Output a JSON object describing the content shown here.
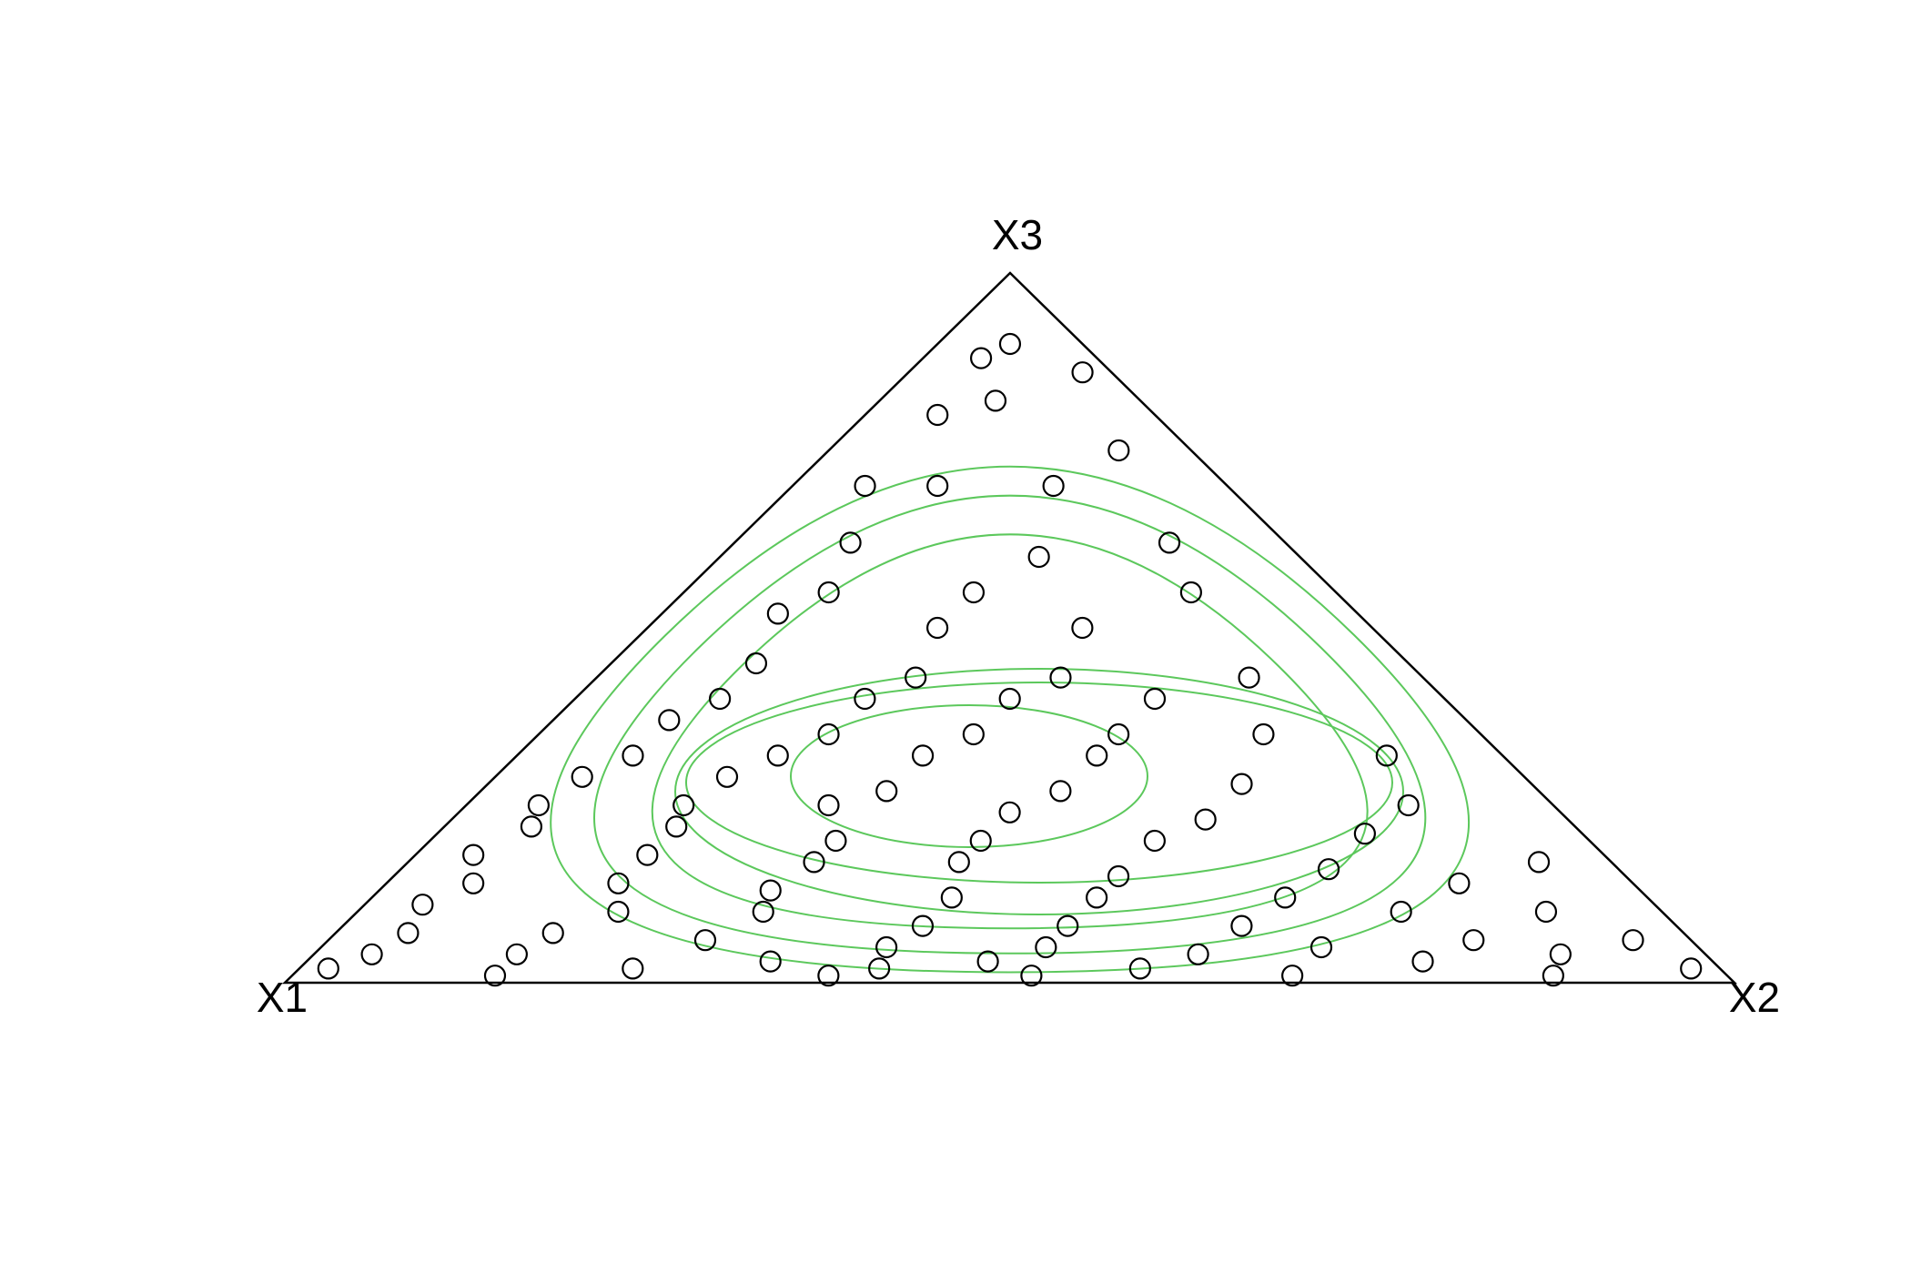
{
  "chart_data": {
    "type": "ternary",
    "series": [
      {
        "name": "X1",
        "values": [
          0.05,
          0.08,
          0.02,
          0.1,
          0.15,
          0.05,
          0.2,
          0.12,
          0.25,
          0.3,
          0.08,
          0.18,
          0.35,
          0.1,
          0.25,
          0.4,
          0.2,
          0.3,
          0.45,
          0.12,
          0.35,
          0.25,
          0.5,
          0.4,
          0.2,
          0.3,
          0.55,
          0.15,
          0.45,
          0.35,
          0.25,
          0.6,
          0.08,
          0.5,
          0.4,
          0.28,
          0.65,
          0.55,
          0.2,
          0.45,
          0.33,
          0.7,
          0.6,
          0.1,
          0.5,
          0.38,
          0.25,
          0.72,
          0.62,
          0.15,
          0.52,
          0.42,
          0.3,
          0.78,
          0.66,
          0.05,
          0.55,
          0.45,
          0.2,
          0.35,
          0.8,
          0.7,
          0.12,
          0.6,
          0.48,
          0.25,
          0.38,
          0.85,
          0.72,
          0.08,
          0.62,
          0.18,
          0.52,
          0.3,
          0.42,
          0.88,
          0.78,
          0.04,
          0.68,
          0.15,
          0.56,
          0.26,
          0.45,
          0.92,
          0.82,
          0.1,
          0.35,
          0.65,
          0.5,
          0.2,
          0.75,
          0.4,
          0.58,
          0.96,
          0.02,
          0.3,
          0.85,
          0.62,
          0.12,
          0.48
        ]
      },
      {
        "name": "X2",
        "values": [
          0.05,
          0.04,
          0.12,
          0.08,
          0.05,
          0.2,
          0.1,
          0.18,
          0.05,
          0.08,
          0.3,
          0.22,
          0.1,
          0.35,
          0.2,
          0.08,
          0.3,
          0.2,
          0.1,
          0.45,
          0.22,
          0.32,
          0.1,
          0.2,
          0.4,
          0.3,
          0.08,
          0.5,
          0.2,
          0.3,
          0.4,
          0.08,
          0.6,
          0.18,
          0.28,
          0.4,
          0.06,
          0.16,
          0.52,
          0.28,
          0.4,
          0.05,
          0.15,
          0.65,
          0.25,
          0.38,
          0.52,
          0.06,
          0.16,
          0.64,
          0.28,
          0.38,
          0.5,
          0.04,
          0.16,
          0.78,
          0.28,
          0.38,
          0.64,
          0.5,
          0.06,
          0.16,
          0.74,
          0.27,
          0.4,
          0.63,
          0.5,
          0.04,
          0.18,
          0.82,
          0.28,
          0.72,
          0.4,
          0.62,
          0.5,
          0.05,
          0.15,
          0.9,
          0.26,
          0.79,
          0.39,
          0.69,
          0.5,
          0.04,
          0.14,
          0.86,
          0.61,
          0.32,
          0.47,
          0.77,
          0.23,
          0.58,
          0.4,
          0.02,
          0.96,
          0.69,
          0.14,
          0.37,
          0.87,
          0.51
        ]
      },
      {
        "name": "X3",
        "values": [
          0.9,
          0.88,
          0.86,
          0.82,
          0.8,
          0.75,
          0.7,
          0.7,
          0.7,
          0.62,
          0.62,
          0.6,
          0.55,
          0.55,
          0.55,
          0.52,
          0.5,
          0.5,
          0.45,
          0.43,
          0.43,
          0.43,
          0.4,
          0.4,
          0.4,
          0.4,
          0.37,
          0.35,
          0.35,
          0.35,
          0.35,
          0.32,
          0.32,
          0.32,
          0.32,
          0.32,
          0.29,
          0.29,
          0.28,
          0.27,
          0.27,
          0.25,
          0.25,
          0.25,
          0.25,
          0.24,
          0.23,
          0.22,
          0.22,
          0.21,
          0.2,
          0.2,
          0.2,
          0.18,
          0.18,
          0.17,
          0.17,
          0.17,
          0.16,
          0.15,
          0.14,
          0.14,
          0.14,
          0.13,
          0.12,
          0.12,
          0.12,
          0.11,
          0.1,
          0.1,
          0.1,
          0.1,
          0.08,
          0.08,
          0.08,
          0.07,
          0.07,
          0.06,
          0.06,
          0.06,
          0.05,
          0.05,
          0.05,
          0.04,
          0.04,
          0.04,
          0.04,
          0.03,
          0.03,
          0.03,
          0.02,
          0.02,
          0.02,
          0.02,
          0.02,
          0.01,
          0.01,
          0.01,
          0.01,
          0.01
        ]
      }
    ],
    "color": "#000000",
    "contour_color": "#5cc85c"
  }
}
